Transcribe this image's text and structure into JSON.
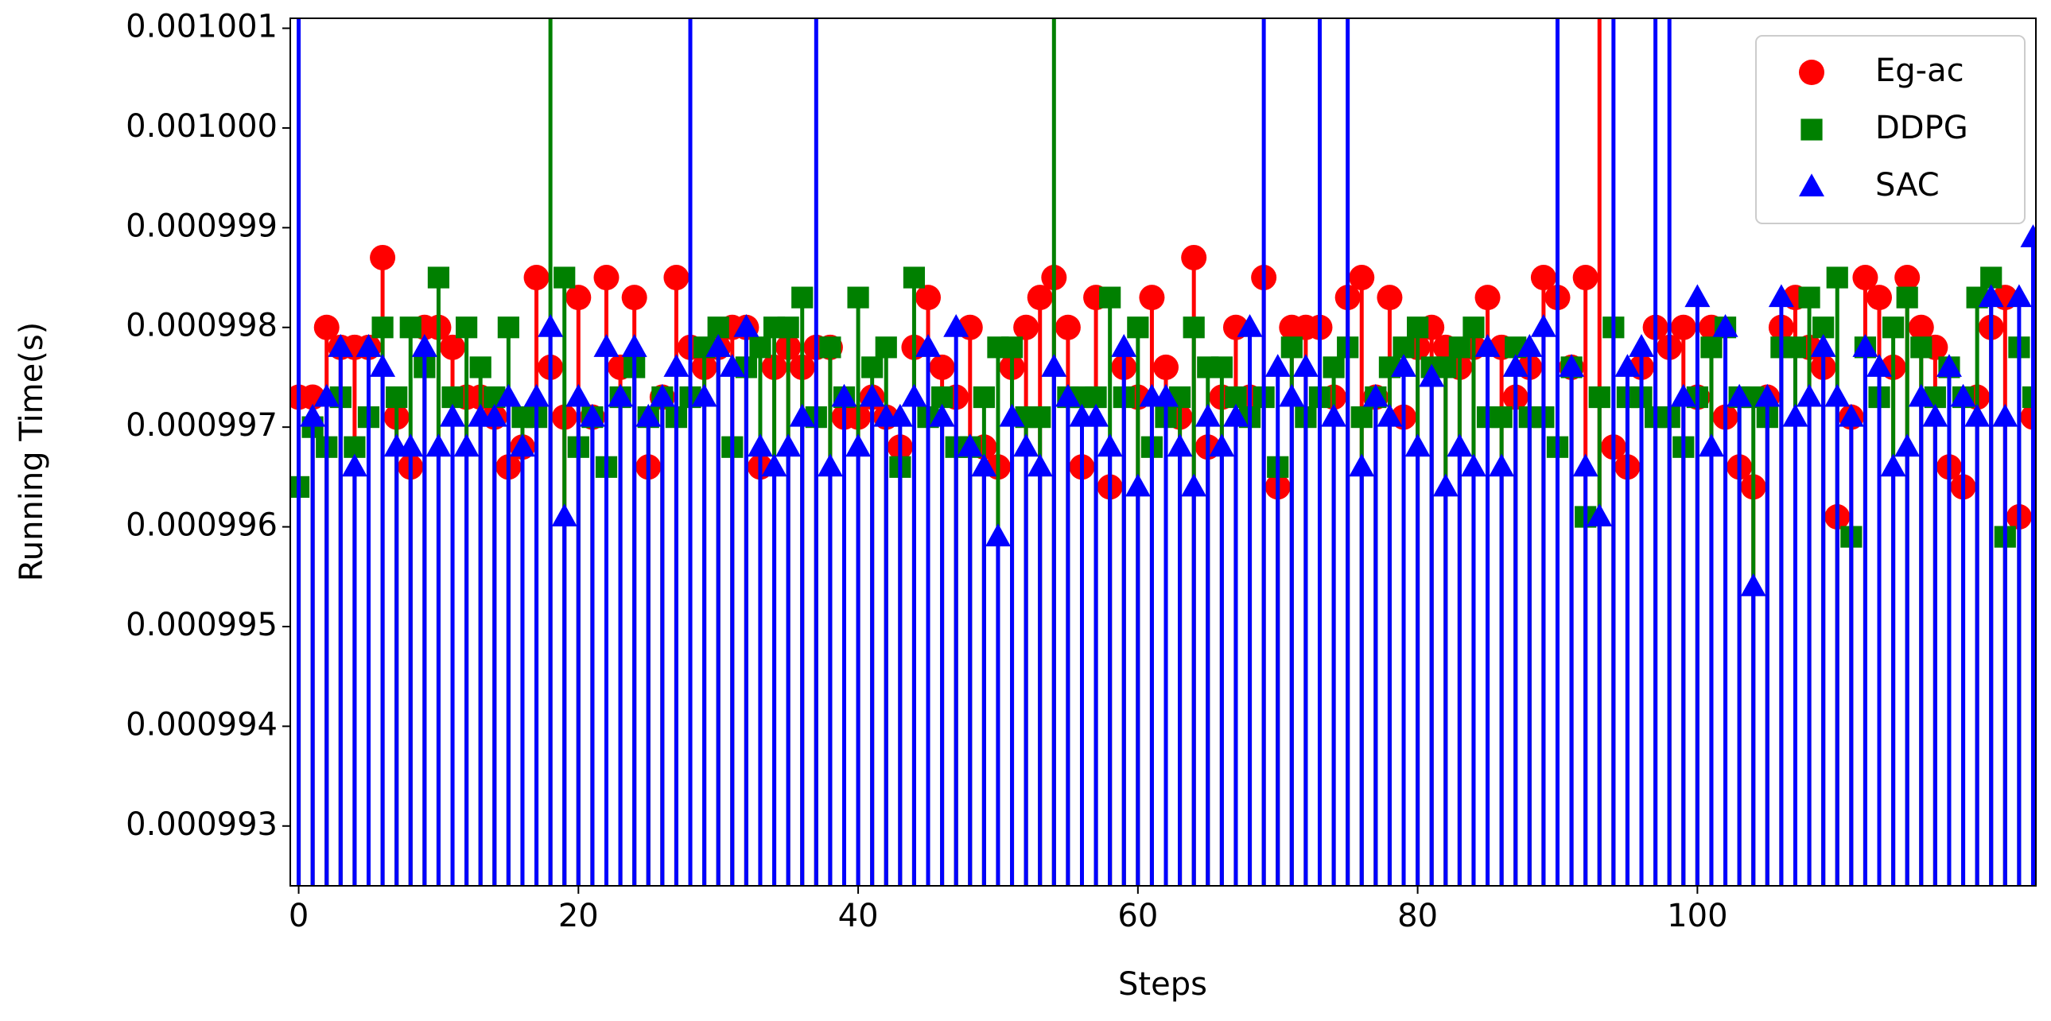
{
  "chart_data": {
    "type": "stem",
    "x_label": "Steps",
    "y_label": "Running Time(s)",
    "xlim": [
      -0.6,
      124.2
    ],
    "xticks": [
      0,
      20,
      40,
      60,
      80,
      100
    ],
    "ylim": [
      0.0009924,
      0.0010011
    ],
    "yticks": [
      0.000993,
      0.000994,
      0.000995,
      0.000996,
      0.000997,
      0.000998,
      0.000999,
      {
        "value": 0.001,
        "label": "0.001000"
      },
      0.001001
    ],
    "legend": "upper right",
    "x": [
      0,
      1,
      2,
      3,
      4,
      5,
      6,
      7,
      8,
      9,
      10,
      11,
      12,
      13,
      14,
      15,
      16,
      17,
      18,
      19,
      20,
      21,
      22,
      23,
      24,
      25,
      26,
      27,
      28,
      29,
      30,
      31,
      32,
      33,
      34,
      35,
      36,
      37,
      38,
      39,
      40,
      41,
      42,
      43,
      44,
      45,
      46,
      47,
      48,
      49,
      50,
      51,
      52,
      53,
      54,
      55,
      56,
      57,
      58,
      59,
      60,
      61,
      62,
      63,
      64,
      65,
      66,
      67,
      68,
      69,
      70,
      71,
      72,
      73,
      74,
      75,
      76,
      77,
      78,
      79,
      80,
      81,
      82,
      83,
      84,
      85,
      86,
      87,
      88,
      89,
      90,
      91,
      92,
      93,
      94,
      95,
      96,
      97,
      98,
      99,
      100,
      101,
      102,
      103,
      104,
      105,
      106,
      107,
      108,
      109,
      110,
      111,
      112,
      113,
      114,
      115,
      116,
      117,
      118,
      119,
      120,
      121,
      122,
      123,
      124
    ],
    "series": [
      {
        "name": "Eg-ac",
        "color": "#ff0000",
        "marker": "circle",
        "values": [
          0.0009973,
          0.0009973,
          0.000998,
          0.0009978,
          0.0009978,
          0.0009978,
          0.0009987,
          0.0009971,
          0.0009966,
          0.000998,
          0.000998,
          0.0009978,
          0.0009973,
          0.0009973,
          0.0009971,
          0.0009966,
          0.0009968,
          0.0009985,
          0.0009976,
          0.0009971,
          0.0009983,
          0.0009971,
          0.0009985,
          0.0009976,
          0.0009983,
          0.0009966,
          0.0009973,
          0.0009985,
          0.0009978,
          0.0009976,
          0.0009978,
          0.000998,
          0.000998,
          0.0009966,
          0.0009976,
          0.0009978,
          0.0009976,
          0.0009978,
          0.0009978,
          0.0009971,
          0.0009971,
          0.0009973,
          0.0009971,
          0.0009968,
          0.0009978,
          0.0009983,
          0.0009976,
          0.0009973,
          0.000998,
          0.0009968,
          0.0009966,
          0.0009976,
          0.000998,
          0.0009983,
          0.0009985,
          0.000998,
          0.0009966,
          0.0009983,
          0.0009964,
          0.0009976,
          0.0009973,
          0.0009983,
          0.0009976,
          0.0009971,
          0.0009987,
          0.0009968,
          0.0009973,
          0.000998,
          0.0009973,
          0.0009985,
          0.0009964,
          0.000998,
          0.000998,
          0.000998,
          0.0009973,
          0.0009983,
          0.0009985,
          0.0009973,
          0.0009983,
          0.0009971,
          0.0009978,
          0.000998,
          0.0009978,
          0.0009976,
          0.0009978,
          0.0009983,
          0.0009978,
          0.0009973,
          0.0009976,
          0.0009985,
          0.0009983,
          0.0009976,
          0.0009985,
          0.001002,
          0.0009968,
          0.0009966,
          0.0009976,
          0.000998,
          0.0009978,
          0.000998,
          0.0009973,
          0.000998,
          0.0009971,
          0.0009966,
          0.0009964,
          0.0009973,
          0.000998,
          0.0009983,
          0.0009978,
          0.0009976,
          0.0009961,
          0.0009971,
          0.0009985,
          0.0009983,
          0.0009976,
          0.0009985,
          0.000998,
          0.0009978,
          0.0009966,
          0.0009964,
          0.0009973,
          0.000998,
          0.0009983,
          0.0009961,
          0.0009971
        ]
      },
      {
        "name": "DDPG",
        "color": "#008000",
        "marker": "square",
        "values": [
          0.0009964,
          0.000997,
          0.0009968,
          0.0009973,
          0.0009968,
          0.0009971,
          0.000998,
          0.0009973,
          0.000998,
          0.0009976,
          0.0009985,
          0.0009973,
          0.000998,
          0.0009976,
          0.0009973,
          0.000998,
          0.0009971,
          0.0009971,
          0.001002,
          0.0009985,
          0.0009968,
          0.0009971,
          0.0009966,
          0.0009973,
          0.0009976,
          0.0009971,
          0.0009973,
          0.0009971,
          0.0009973,
          0.0009978,
          0.000998,
          0.0009968,
          0.0009976,
          0.0009978,
          0.000998,
          0.000998,
          0.0009983,
          0.0009971,
          0.0009978,
          0.0009973,
          0.0009983,
          0.0009976,
          0.0009978,
          0.0009966,
          0.0009985,
          0.0009971,
          0.0009973,
          0.0009968,
          0.0009968,
          0.0009973,
          0.0009978,
          0.0009978,
          0.0009971,
          0.0009971,
          0.001002,
          0.0009973,
          0.0009973,
          0.0009973,
          0.0009983,
          0.0009973,
          0.000998,
          0.0009968,
          0.0009971,
          0.0009973,
          0.000998,
          0.0009976,
          0.0009976,
          0.0009973,
          0.0009971,
          0.0009973,
          0.0009966,
          0.0009978,
          0.0009971,
          0.0009973,
          0.0009976,
          0.0009978,
          0.0009971,
          0.0009973,
          0.0009976,
          0.0009978,
          0.000998,
          0.0009976,
          0.0009976,
          0.0009978,
          0.000998,
          0.0009971,
          0.0009971,
          0.0009978,
          0.0009971,
          0.0009971,
          0.0009968,
          0.0009976,
          0.0009961,
          0.0009973,
          0.000998,
          0.0009973,
          0.0009973,
          0.0009971,
          0.0009971,
          0.0009968,
          0.0009973,
          0.0009978,
          0.000998,
          0.0009973,
          0.0009973,
          0.0009971,
          0.0009978,
          0.0009978,
          0.0009983,
          0.000998,
          0.0009985,
          0.0009959,
          0.0009978,
          0.0009973,
          0.000998,
          0.0009983,
          0.0009978,
          0.0009973,
          0.0009976,
          0.0009973,
          0.0009983,
          0.0009985,
          0.0009959,
          0.0009978,
          0.0009973
        ]
      },
      {
        "name": "SAC",
        "color": "#0000ff",
        "marker": "triangle",
        "values": [
          0.001002,
          0.0009971,
          0.0009973,
          0.0009978,
          0.0009966,
          0.0009978,
          0.0009976,
          0.0009968,
          0.0009968,
          0.0009978,
          0.0009968,
          0.0009971,
          0.0009968,
          0.0009971,
          0.0009971,
          0.0009973,
          0.0009968,
          0.0009973,
          0.000998,
          0.0009961,
          0.0009973,
          0.0009971,
          0.0009978,
          0.0009973,
          0.0009978,
          0.0009971,
          0.0009973,
          0.0009976,
          0.001002,
          0.0009973,
          0.0009978,
          0.0009976,
          0.000998,
          0.0009968,
          0.0009966,
          0.0009968,
          0.0009971,
          0.001002,
          0.0009966,
          0.0009973,
          0.0009968,
          0.0009973,
          0.0009971,
          0.0009971,
          0.0009973,
          0.0009978,
          0.0009971,
          0.000998,
          0.0009968,
          0.0009966,
          0.0009959,
          0.0009971,
          0.0009968,
          0.0009966,
          0.0009976,
          0.0009973,
          0.0009971,
          0.0009971,
          0.0009968,
          0.0009978,
          0.0009964,
          0.0009973,
          0.0009973,
          0.0009968,
          0.0009964,
          0.0009971,
          0.0009968,
          0.0009971,
          0.000998,
          0.001002,
          0.0009976,
          0.0009973,
          0.0009976,
          0.001002,
          0.0009971,
          0.001002,
          0.0009966,
          0.0009973,
          0.0009971,
          0.0009976,
          0.0009968,
          0.0009975,
          0.0009964,
          0.0009968,
          0.0009966,
          0.0009978,
          0.0009966,
          0.0009976,
          0.0009978,
          0.000998,
          0.001002,
          0.0009976,
          0.0009966,
          0.0009961,
          0.001002,
          0.0009976,
          0.0009978,
          0.001002,
          0.001002,
          0.0009973,
          0.0009983,
          0.0009968,
          0.000998,
          0.0009973,
          0.0009954,
          0.0009973,
          0.0009983,
          0.0009971,
          0.0009973,
          0.0009978,
          0.0009973,
          0.0009971,
          0.0009978,
          0.0009976,
          0.0009966,
          0.0009968,
          0.0009973,
          0.0009971,
          0.0009976,
          0.0009973,
          0.0009971,
          0.0009983,
          0.0009971,
          0.0009983,
          0.0009989
        ]
      }
    ]
  }
}
